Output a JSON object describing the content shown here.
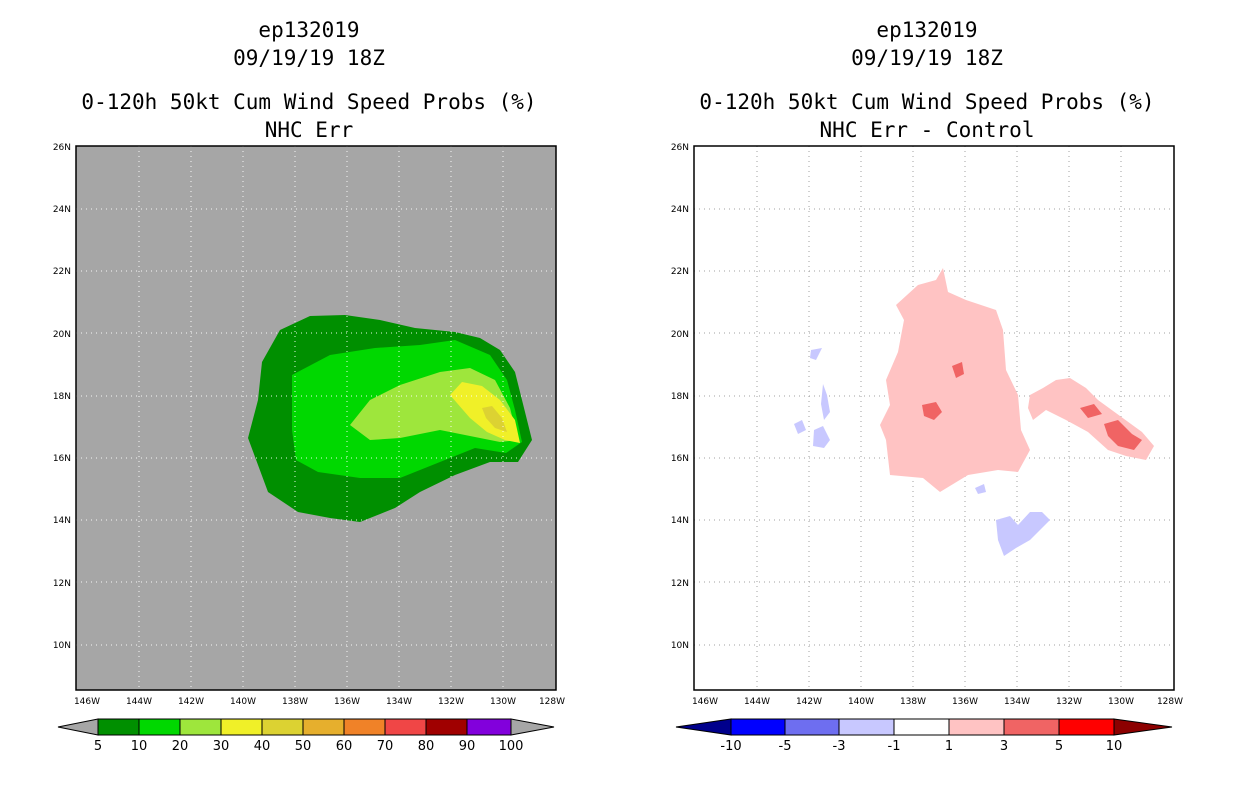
{
  "left": {
    "storm_id": "ep132019",
    "datetime": "09/19/19 18Z",
    "title_line1": "0-120h 50kt Cum Wind Speed Probs (%)",
    "title_line2": "NHC Err",
    "lat_labels": [
      "26N",
      "24N",
      "22N",
      "20N",
      "18N",
      "16N",
      "14N",
      "12N",
      "10N"
    ],
    "lon_labels": [
      "146W",
      "144W",
      "142W",
      "140W",
      "138W",
      "136W",
      "134W",
      "132W",
      "130W",
      "128W"
    ],
    "colorbar": {
      "labels": [
        "5",
        "10",
        "20",
        "30",
        "40",
        "50",
        "60",
        "70",
        "80",
        "90",
        "100"
      ],
      "colors": [
        "#008f00",
        "#00d800",
        "#9ee63c",
        "#f0f028",
        "#dcd232",
        "#e6af2d",
        "#f08228",
        "#f04646",
        "#a00000",
        "#8200dc"
      ],
      "end_color": "#a6a6a6"
    },
    "background_color": "#a6a6a6"
  },
  "right": {
    "storm_id": "ep132019",
    "datetime": "09/19/19 18Z",
    "title_line1": "0-120h 50kt Cum Wind Speed Probs (%)",
    "title_line2": "NHC Err - Control",
    "lat_labels": [
      "26N",
      "24N",
      "22N",
      "20N",
      "18N",
      "16N",
      "14N",
      "12N",
      "10N"
    ],
    "lon_labels": [
      "146W",
      "144W",
      "142W",
      "140W",
      "138W",
      "136W",
      "134W",
      "132W",
      "130W",
      "128W"
    ],
    "colorbar": {
      "labels": [
        "-10",
        "-5",
        "-3",
        "-1",
        "1",
        "3",
        "5",
        "10"
      ],
      "colors": [
        "#0000ff",
        "#6e6ef0",
        "#c8c8ff",
        "#ffffff",
        "#ffc3c3",
        "#f06464",
        "#ff0000"
      ],
      "left_end_color": "#00008c",
      "right_end_color": "#8c0000"
    }
  }
}
